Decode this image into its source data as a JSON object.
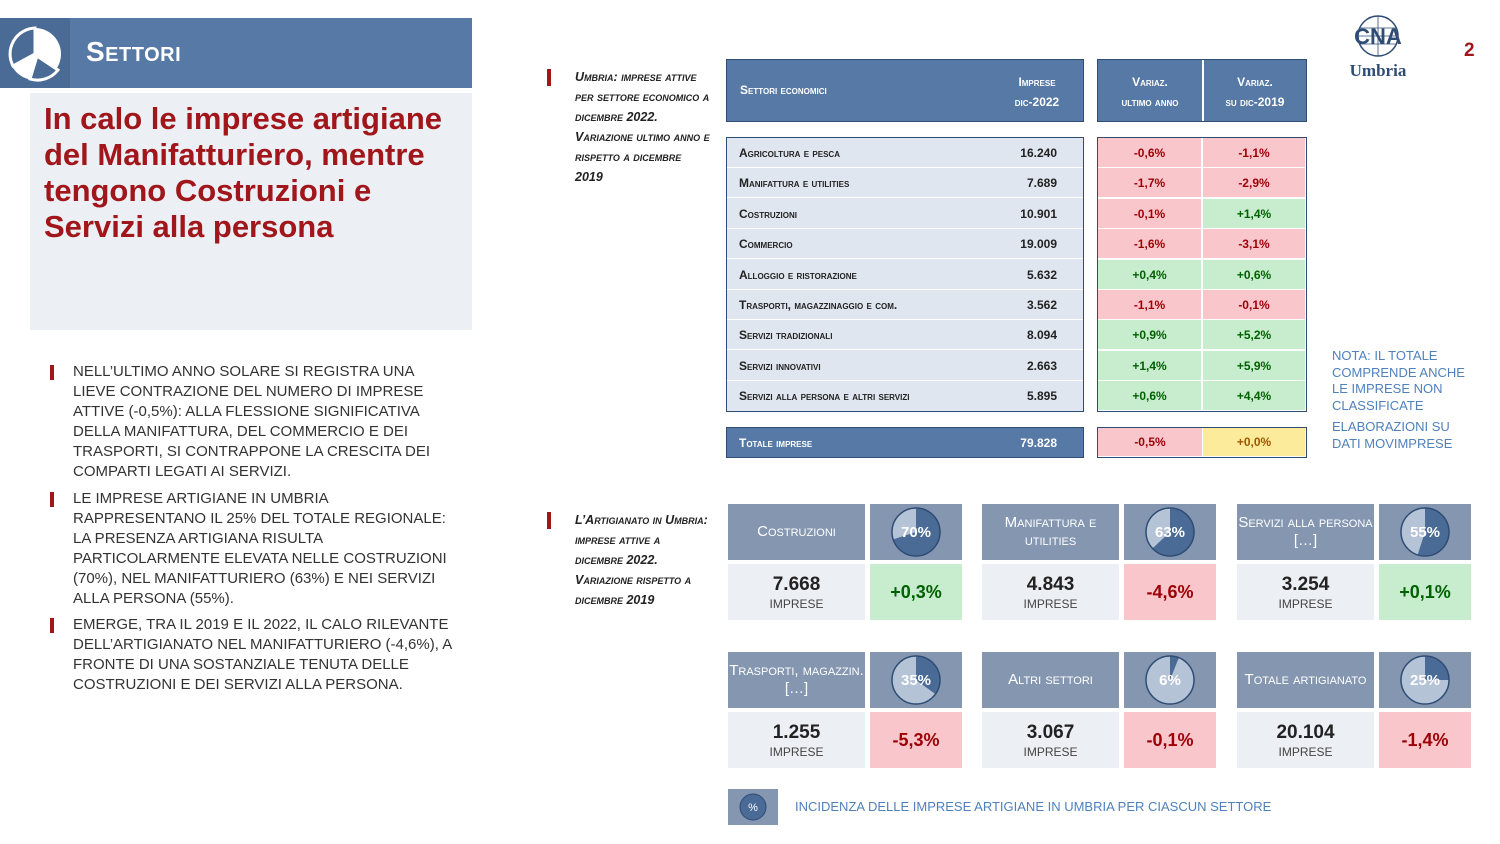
{
  "header": {
    "title": "Settori",
    "page_number": "2"
  },
  "logo": {
    "brand": "CNA",
    "region": "Umbria"
  },
  "headline": "In calo le imprese artigiane del Manifatturiero, mentre tengono Costruzioni e Servizi alla persona",
  "bullets": [
    "Nell’ultimo anno solare si registra una lieve contrazione del numero di imprese attive (-0,5%): alla flessione significativa della manifattura, del commercio e dei trasporti, si contrappone la crescita dei comparti legati ai servizi.",
    "Le imprese artigiane in Umbria rappresentano il 25% del totale regionale: la presenza artigiana risulta particolarmente elevata nelle costruzioni (70%), nel manifatturiero (63%) e nei servizi alla persona (55%).",
    "Emerge, tra il 2019 e il 2022, il calo rilevante dell’artigianato nel manifatturiero (-4,6%), a fronte di una sostanziale tenuta delle costruzioni e dei servizi alla persona."
  ],
  "side_notes": {
    "table": "Umbria: imprese attive per settore economico a dicembre 2022. Variazione ultimo anno e rispetto a dicembre 2019",
    "cards": "L’Artigianato in Umbria: imprese attive a dicembre 2022. Variazione rispetto a dicembre 2019"
  },
  "table": {
    "headers": {
      "sector": "Settori economici",
      "firms_line1": "Imprese",
      "firms_line2": "dic-2022",
      "var_year_line1": "Variaz.",
      "var_year_line2": "ultimo anno",
      "var_2019_line1": "Variaz.",
      "var_2019_line2": "su dic-2019"
    },
    "rows": [
      {
        "label": "Agricoltura e pesca",
        "value": "16.240",
        "var_year": "-0,6%",
        "var_2019": "-1,1%"
      },
      {
        "label": "Manifattura e utilities",
        "value": "7.689",
        "var_year": "-1,7%",
        "var_2019": "-2,9%"
      },
      {
        "label": "Costruzioni",
        "value": "10.901",
        "var_year": "-0,1%",
        "var_2019": "+1,4%"
      },
      {
        "label": "Commercio",
        "value": "19.009",
        "var_year": "-1,6%",
        "var_2019": "-3,1%"
      },
      {
        "label": "Alloggio e ristorazione",
        "value": "5.632",
        "var_year": "+0,4%",
        "var_2019": "+0,6%"
      },
      {
        "label": "Trasporti, magazzinaggio e com.",
        "value": "3.562",
        "var_year": "-1,1%",
        "var_2019": "-0,1%"
      },
      {
        "label": "Servizi tradizionali",
        "value": "8.094",
        "var_year": "+0,9%",
        "var_2019": "+5,2%"
      },
      {
        "label": "Servizi innovativi",
        "value": "2.663",
        "var_year": "+1,4%",
        "var_2019": "+5,9%"
      },
      {
        "label": "Servizi alla persona e altri servizi",
        "value": "5.895",
        "var_year": "+0,6%",
        "var_2019": "+4,4%"
      }
    ],
    "total": {
      "label": "Totale imprese",
      "value": "79.828",
      "var_year": "-0,5%",
      "var_2019": "+0,0%"
    }
  },
  "notes": {
    "note1": "Nota: il totale comprende anche le imprese non classificate",
    "note2": "Elaborazioni su dati Movimprese"
  },
  "cards": [
    {
      "title": "Costruzioni",
      "share": "70%",
      "share_value": 70,
      "count": "7.668",
      "unit": "imprese",
      "variation": "+0,3%"
    },
    {
      "title": "Manifattura e utilities",
      "share": "63%",
      "share_value": 63,
      "count": "4.843",
      "unit": "imprese",
      "variation": "-4,6%"
    },
    {
      "title": "Servizi alla persona […]",
      "share": "55%",
      "share_value": 55,
      "count": "3.254",
      "unit": "imprese",
      "variation": "+0,1%"
    },
    {
      "title": "Trasporti, magazzin. […]",
      "share": "35%",
      "share_value": 35,
      "count": "1.255",
      "unit": "imprese",
      "variation": "-5,3%"
    },
    {
      "title": "Altri settori",
      "share": "6%",
      "share_value": 6,
      "count": "3.067",
      "unit": "imprese",
      "variation": "-0,1%"
    },
    {
      "title": "Totale artigianato",
      "share": "25%",
      "share_value": 25,
      "count": "20.104",
      "unit": "imprese",
      "variation": "-1,4%"
    }
  ],
  "legend": {
    "symbol": "%",
    "text": "Incidenza delle imprese artigiane in Umbria per ciascun settore"
  },
  "colors": {
    "header_blue": "#5679a5",
    "accent_red": "#a0161b",
    "card_gray_blue": "#8496b0",
    "positive_bg": "#c7ecce",
    "negative_bg": "#f9c7cb"
  }
}
